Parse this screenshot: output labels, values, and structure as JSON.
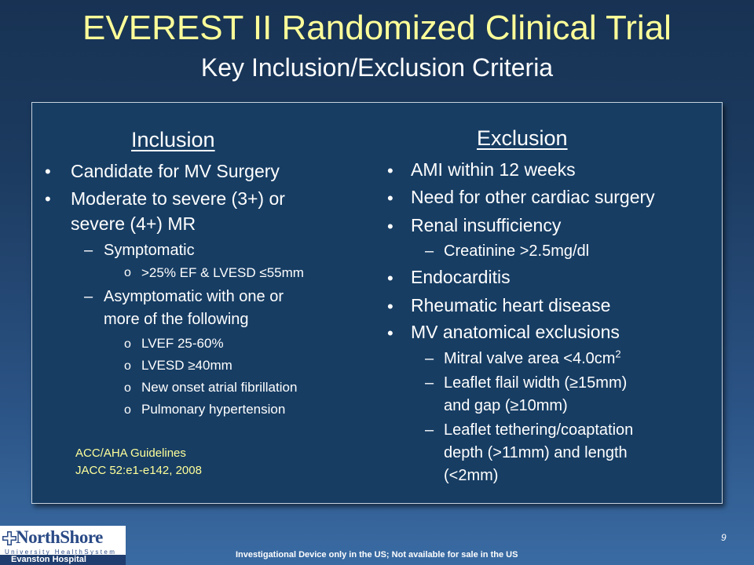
{
  "slide": {
    "title": "EVEREST II Randomized Clinical Trial",
    "subtitle": "Key Inclusion/Exclusion Criteria",
    "page_number": "9",
    "footnote": "Investigational Device only in the US; Not available for sale in the US"
  },
  "inclusion": {
    "heading": "Inclusion",
    "items": [
      "Candidate for MV Surgery",
      "Moderate to severe (3+) or",
      "severe (4+) MR"
    ],
    "symptomatic": "Symptomatic",
    "symptomatic_sub": [
      ">25% EF & LVESD ≤55mm"
    ],
    "asymptomatic": [
      "Asymptomatic with one or",
      "more of the following"
    ],
    "asymptomatic_sub": [
      "LVEF 25-60%",
      "LVESD ≥40mm",
      "New onset atrial fibrillation",
      "Pulmonary hypertension"
    ],
    "guidelines": [
      "ACC/AHA Guidelines",
      "JACC 52:e1-e142, 2008"
    ]
  },
  "exclusion": {
    "heading": "Exclusion",
    "items": [
      "AMI within 12 weeks",
      "Need for other cardiac surgery",
      "Renal insufficiency",
      "Endocarditis",
      "Rheumatic heart disease",
      "MV anatomical exclusions"
    ],
    "renal_sub": "Creatinine >2.5mg/dl",
    "mv_sub": {
      "mva": "Mitral valve area <4.0cm",
      "mva_sup": "2",
      "flail": [
        "Leaflet flail width (≥15mm)",
        "and gap (≥10mm)"
      ],
      "tethering": [
        "Leaflet tethering/coaptation",
        "depth (>11mm) and length",
        "(<2mm)"
      ]
    }
  },
  "logo": {
    "name": "NorthShore",
    "system": "University HealthSystem",
    "hospital": "Evanston Hospital"
  },
  "glyphs": {
    "bullet": "•",
    "dash": "–",
    "obullet": "o"
  }
}
